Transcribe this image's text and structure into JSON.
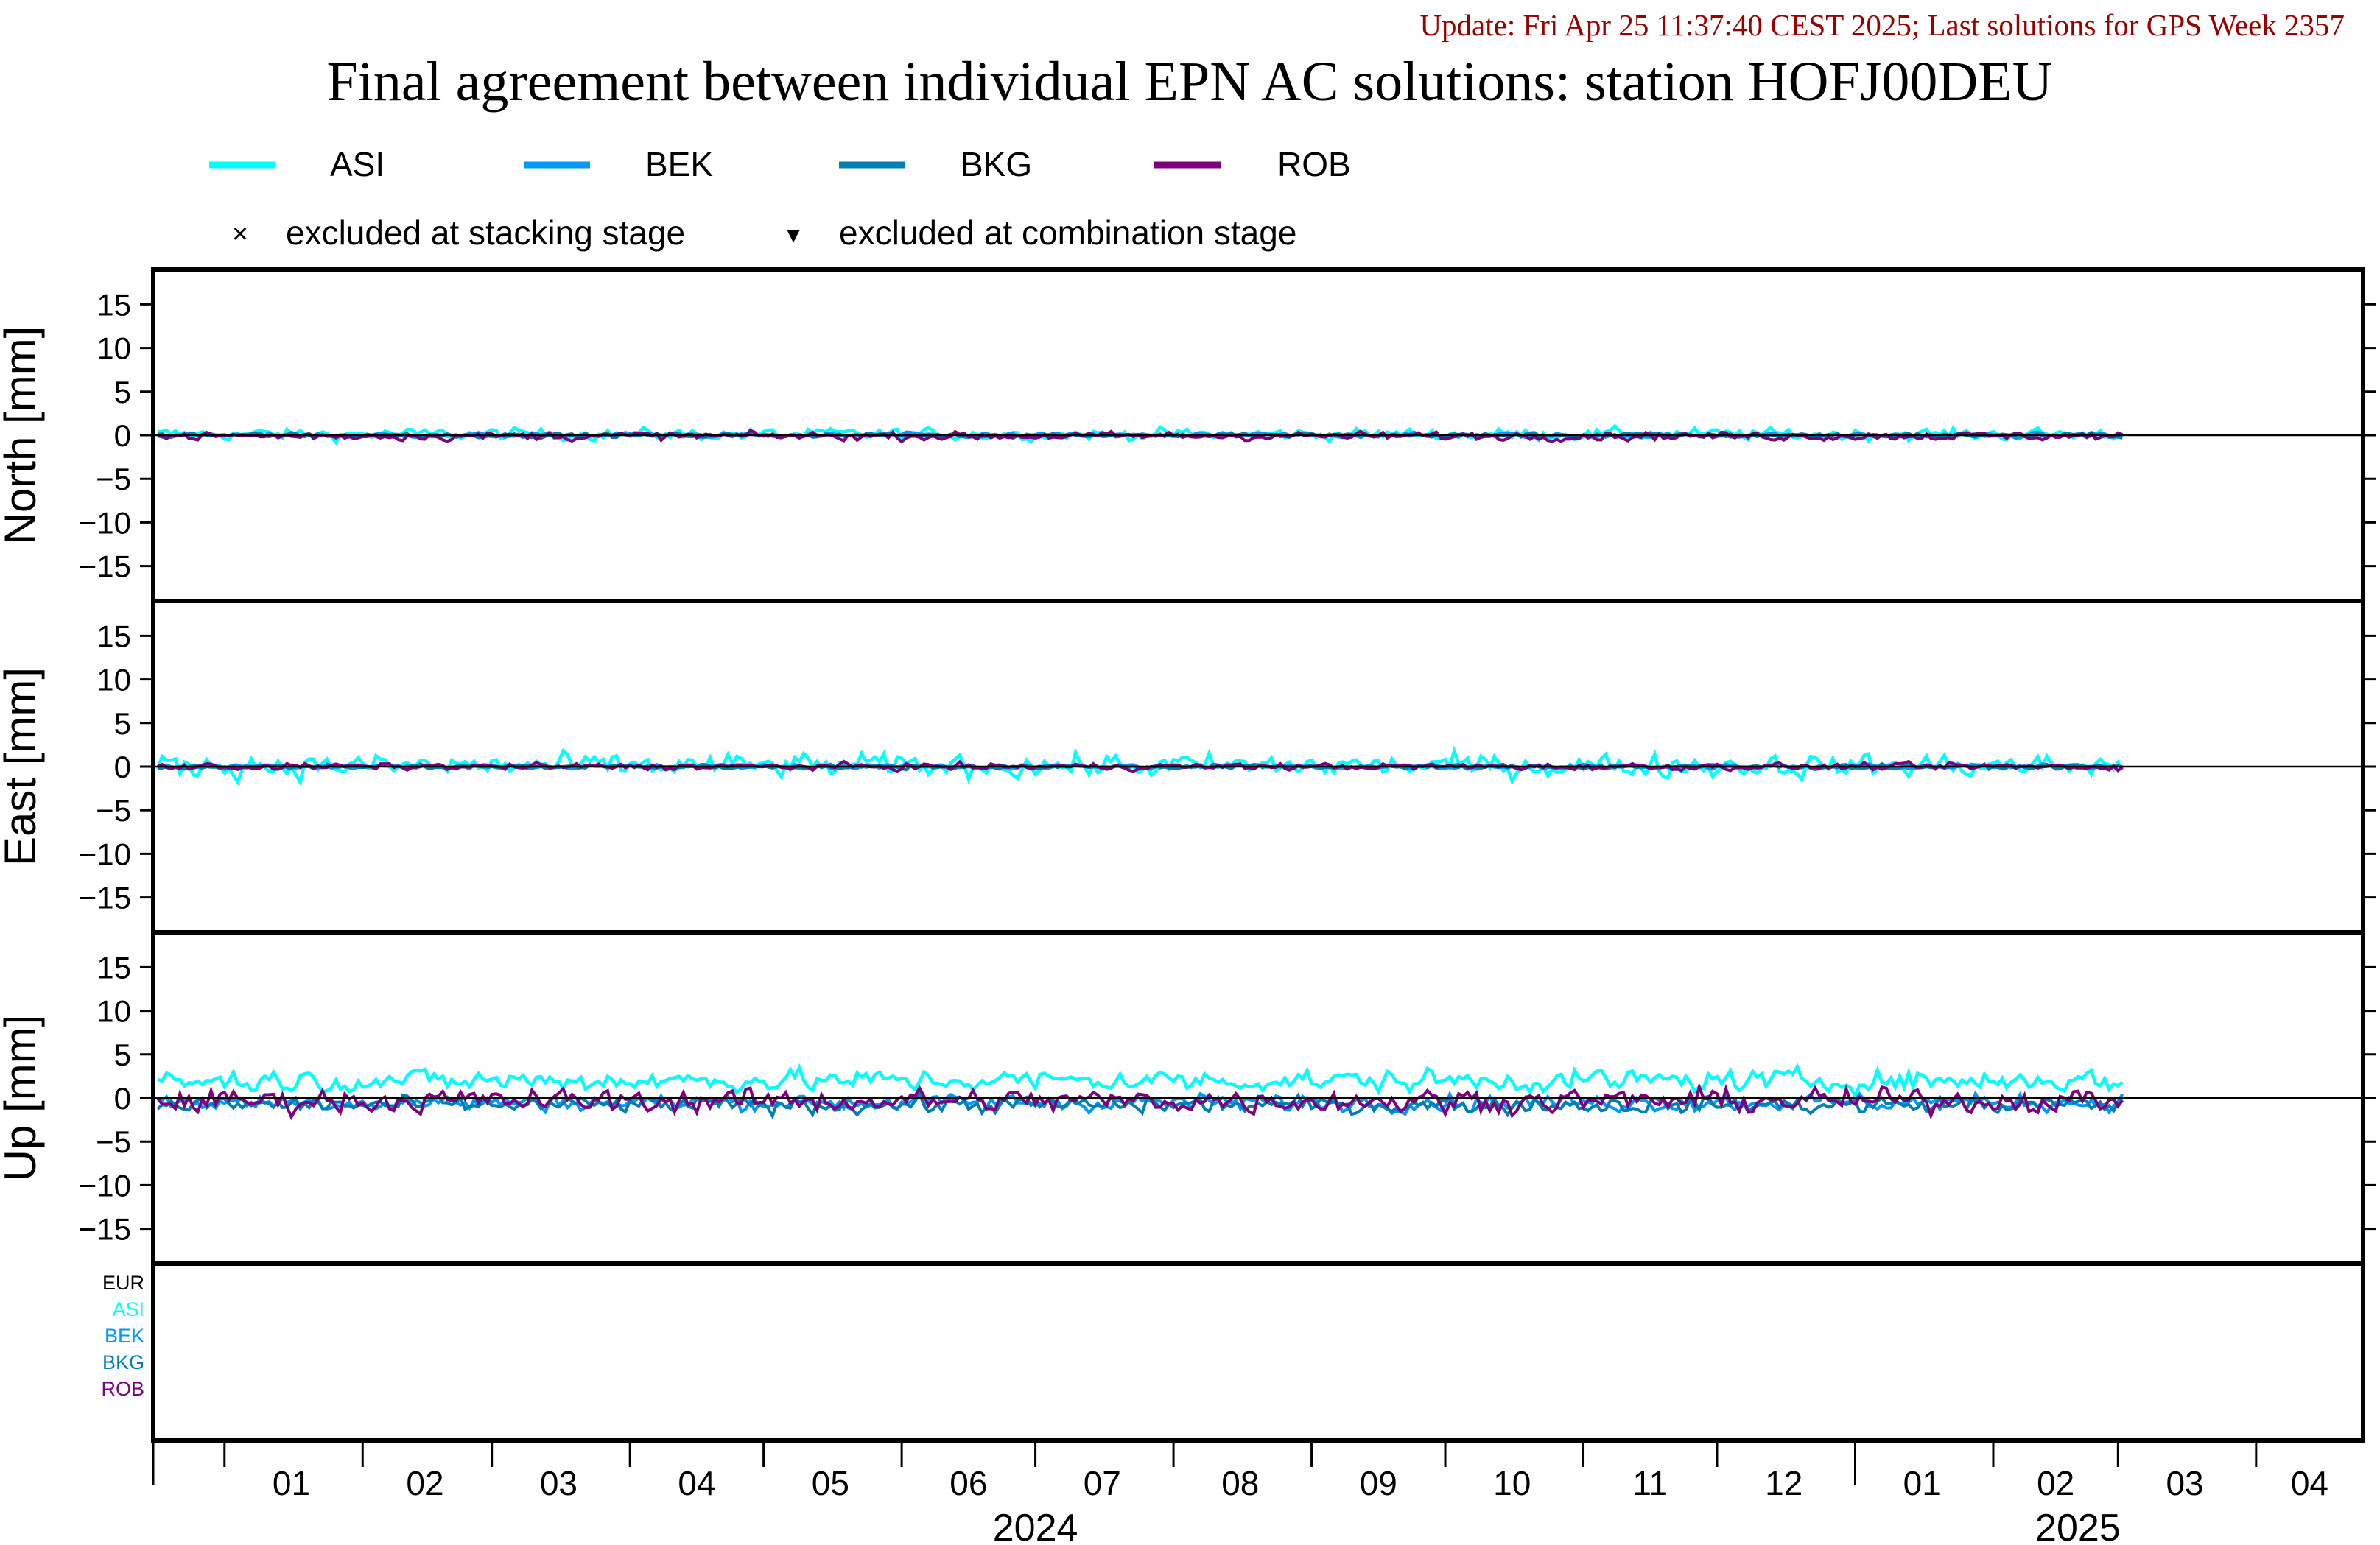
{
  "update_text": "Update: Fri Apr 25 11:37:40 CEST 2025; Last solutions for GPS Week 2357",
  "title": "Final agreement between individual EPN AC solutions: station HOFJ00DEU",
  "colors": {
    "ASI": "#00ffff",
    "BEK": "#0099ff",
    "BKG": "#007fb2",
    "ROB": "#7f007f",
    "EUR": "#000000",
    "update": "#990000"
  },
  "legend": {
    "series": [
      "ASI",
      "BEK",
      "BKG",
      "ROB"
    ],
    "excluded_stacking": "excluded at stacking stage",
    "excluded_combination": "excluded at combination stage",
    "stacking_marker": "×",
    "combination_marker": "▾"
  },
  "chart_data": {
    "type": "line",
    "x_range": [
      "2023-12-16",
      "2025-04-25"
    ],
    "y_ticks": [
      -15,
      -10,
      -5,
      0,
      5,
      10,
      15
    ],
    "ylim": [
      -19,
      19
    ],
    "grid": false,
    "panels": [
      {
        "name": "north",
        "ylabel": "North [mm]",
        "amp": {
          "ASI": 0.7,
          "BEK": 0.3,
          "BKG": 0.3,
          "ROB": 0.5
        },
        "offset": {
          "ASI": 0.1,
          "BEK": 0,
          "BKG": 0,
          "ROB": -0.1
        }
      },
      {
        "name": "east",
        "ylabel": "East [mm]",
        "amp": {
          "ASI": 1.4,
          "BEK": 0.3,
          "BKG": 0.3,
          "ROB": 0.4
        },
        "offset": {
          "ASI": 0.1,
          "BEK": 0,
          "BKG": 0,
          "ROB": 0
        }
      },
      {
        "name": "up",
        "ylabel": "Up [mm]",
        "amp": {
          "ASI": 1.3,
          "BEK": 1.0,
          "BKG": 1.0,
          "ROB": 1.4
        },
        "offset": {
          "ASI": 2.0,
          "BEK": -0.5,
          "BKG": -0.8,
          "ROB": -0.3
        }
      }
    ],
    "series_start": "2023-12-17",
    "series_end": "2025-03-02",
    "ac_list": [
      "EUR",
      "ASI",
      "BEK",
      "BKG",
      "ROB"
    ],
    "month_labels": [
      {
        "date": "2024-01-16",
        "label": "01"
      },
      {
        "date": "2024-02-15",
        "label": "02"
      },
      {
        "date": "2024-03-16",
        "label": "03"
      },
      {
        "date": "2024-04-16",
        "label": "04"
      },
      {
        "date": "2024-05-16",
        "label": "05"
      },
      {
        "date": "2024-06-16",
        "label": "06"
      },
      {
        "date": "2024-07-16",
        "label": "07"
      },
      {
        "date": "2024-08-16",
        "label": "08"
      },
      {
        "date": "2024-09-16",
        "label": "09"
      },
      {
        "date": "2024-10-16",
        "label": "10"
      },
      {
        "date": "2024-11-16",
        "label": "11"
      },
      {
        "date": "2024-12-16",
        "label": "12"
      },
      {
        "date": "2025-01-16",
        "label": "01"
      },
      {
        "date": "2025-02-15",
        "label": "02"
      },
      {
        "date": "2025-03-16",
        "label": "03"
      },
      {
        "date": "2025-04-13",
        "label": "04"
      }
    ],
    "month_ticks": [
      "2024-01-01",
      "2024-02-01",
      "2024-03-01",
      "2024-04-01",
      "2024-05-01",
      "2024-06-01",
      "2024-07-01",
      "2024-08-01",
      "2024-09-01",
      "2024-10-01",
      "2024-11-01",
      "2024-12-01",
      "2025-01-01",
      "2025-02-01",
      "2025-03-01",
      "2025-04-01"
    ],
    "year_labels": [
      {
        "date": "2024-07-01",
        "label": "2024"
      },
      {
        "date": "2025-02-20",
        "label": "2025"
      }
    ]
  }
}
